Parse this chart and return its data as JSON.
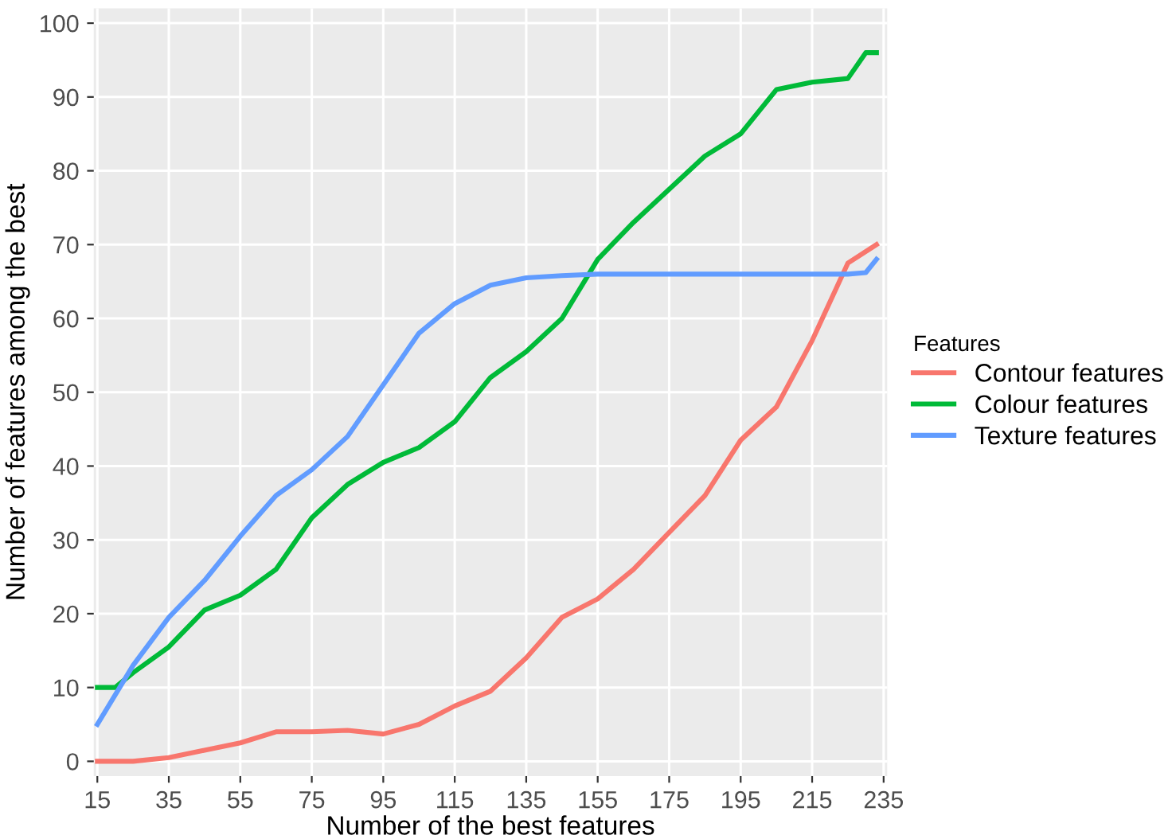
{
  "chart_data": {
    "type": "line",
    "xlabel": "Number of the best features",
    "ylabel": "Number of features among the best",
    "legend_title": "Features",
    "legend": "right",
    "grid": true,
    "line_style": "solid",
    "marker": "none",
    "xlim": [
      14,
      236
    ],
    "xticks": [
      15,
      35,
      55,
      75,
      95,
      115,
      135,
      155,
      175,
      195,
      215,
      235
    ],
    "ylim": [
      -2,
      102
    ],
    "yticks": [
      0,
      10,
      20,
      30,
      40,
      50,
      60,
      70,
      80,
      90,
      100
    ],
    "series": [
      {
        "name": "Contour features",
        "color": "#f8766d",
        "x": [
          15,
          25,
          35,
          45,
          55,
          65,
          75,
          85,
          95,
          105,
          115,
          125,
          135,
          145,
          155,
          165,
          175,
          185,
          195,
          205,
          215,
          225,
          233
        ],
        "values": [
          0,
          0,
          0.5,
          1.5,
          2.5,
          4,
          4,
          4.2,
          3.7,
          5,
          7.5,
          9.5,
          14,
          19.5,
          22,
          26,
          31,
          36,
          43.5,
          48,
          57,
          67.5,
          70
        ]
      },
      {
        "name": "Colour features",
        "color": "#00ba38",
        "x": [
          15,
          20,
          25,
          35,
          45,
          55,
          65,
          75,
          85,
          95,
          105,
          115,
          125,
          135,
          145,
          155,
          165,
          175,
          185,
          195,
          205,
          215,
          225,
          230,
          233
        ],
        "values": [
          10,
          10,
          12,
          15.5,
          20.5,
          22.5,
          26,
          33,
          37.5,
          40.5,
          42.5,
          46,
          52,
          55.5,
          60,
          68,
          73,
          77.5,
          82,
          85,
          91,
          92,
          92.5,
          96,
          96
        ]
      },
      {
        "name": "Texture features",
        "color": "#619cff",
        "x": [
          15,
          25,
          35,
          45,
          55,
          65,
          75,
          85,
          95,
          105,
          115,
          125,
          135,
          145,
          155,
          165,
          175,
          185,
          195,
          205,
          215,
          225,
          230,
          233
        ],
        "values": [
          5,
          13,
          19.5,
          24.5,
          30.5,
          36,
          39.5,
          44,
          51,
          58,
          62,
          64.5,
          65.5,
          65.8,
          66,
          66,
          66,
          66,
          66,
          66,
          66,
          66,
          66.2,
          68
        ]
      }
    ]
  }
}
